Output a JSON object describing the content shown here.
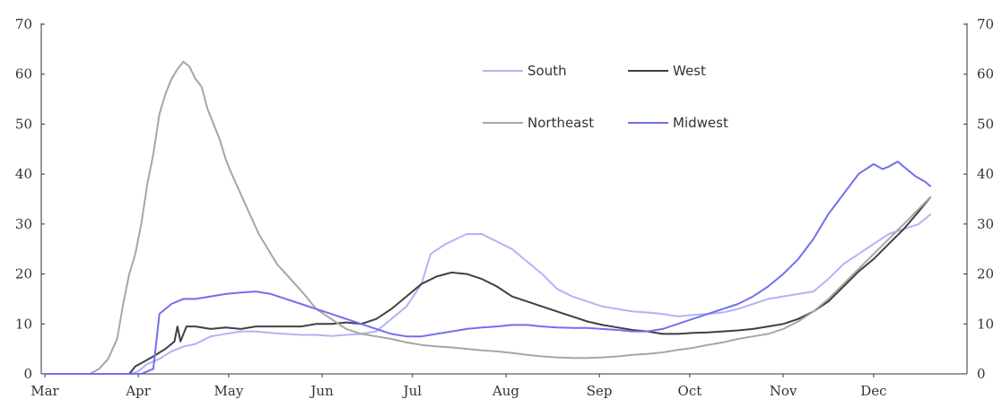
{
  "chart_data": {
    "type": "line",
    "title": "",
    "xlabel": "",
    "ylabel": "",
    "ylim": [
      0,
      70
    ],
    "yticks": [
      0,
      10,
      20,
      30,
      40,
      50,
      60,
      70
    ],
    "month_labels": [
      "Mar",
      "Apr",
      "May",
      "Jun",
      "Jul",
      "Aug",
      "Sep",
      "Oct",
      "Nov",
      "Dec"
    ],
    "x_unit": "days since 1 Mar",
    "legend_position": "top-center",
    "grid": false,
    "series": [
      {
        "name": "South",
        "color": "#b3b3f5",
        "points": [
          [
            0,
            0
          ],
          [
            28,
            0
          ],
          [
            31,
            0.5
          ],
          [
            34,
            2
          ],
          [
            38,
            3
          ],
          [
            42,
            4.5
          ],
          [
            46,
            5.5
          ],
          [
            50,
            6
          ],
          [
            55,
            7.5
          ],
          [
            60,
            8
          ],
          [
            65,
            8.5
          ],
          [
            70,
            8.5
          ],
          [
            75,
            8.2
          ],
          [
            80,
            8
          ],
          [
            85,
            7.8
          ],
          [
            90,
            7.8
          ],
          [
            95,
            7.6
          ],
          [
            100,
            7.8
          ],
          [
            105,
            8
          ],
          [
            110,
            8.5
          ],
          [
            115,
            11
          ],
          [
            120,
            13.5
          ],
          [
            125,
            18
          ],
          [
            128,
            24
          ],
          [
            133,
            26
          ],
          [
            140,
            28
          ],
          [
            145,
            28
          ],
          [
            150,
            26.5
          ],
          [
            155,
            25
          ],
          [
            160,
            22.5
          ],
          [
            165,
            20
          ],
          [
            170,
            17
          ],
          [
            175,
            15.5
          ],
          [
            180,
            14.5
          ],
          [
            185,
            13.5
          ],
          [
            190,
            13
          ],
          [
            195,
            12.5
          ],
          [
            200,
            12.3
          ],
          [
            205,
            12
          ],
          [
            210,
            11.5
          ],
          [
            215,
            11.8
          ],
          [
            220,
            12
          ],
          [
            225,
            12.3
          ],
          [
            230,
            13
          ],
          [
            235,
            14
          ],
          [
            240,
            15
          ],
          [
            245,
            15.5
          ],
          [
            250,
            16
          ],
          [
            255,
            16.5
          ],
          [
            260,
            19
          ],
          [
            265,
            22
          ],
          [
            270,
            24
          ],
          [
            275,
            26
          ],
          [
            280,
            28
          ],
          [
            285,
            29
          ],
          [
            290,
            30
          ],
          [
            294,
            32
          ]
        ]
      },
      {
        "name": "West",
        "color": "#404040",
        "points": [
          [
            0,
            0
          ],
          [
            28,
            0
          ],
          [
            30,
            1.5
          ],
          [
            33,
            2.5
          ],
          [
            36,
            3.5
          ],
          [
            40,
            5
          ],
          [
            43,
            6.5
          ],
          [
            44,
            9.5
          ],
          [
            45,
            6.5
          ],
          [
            47,
            9.5
          ],
          [
            50,
            9.5
          ],
          [
            55,
            9
          ],
          [
            60,
            9.3
          ],
          [
            65,
            9
          ],
          [
            70,
            9.5
          ],
          [
            75,
            9.5
          ],
          [
            80,
            9.5
          ],
          [
            85,
            9.5
          ],
          [
            90,
            10
          ],
          [
            95,
            10
          ],
          [
            100,
            10.3
          ],
          [
            105,
            10
          ],
          [
            110,
            11
          ],
          [
            115,
            13
          ],
          [
            120,
            15.5
          ],
          [
            125,
            18
          ],
          [
            130,
            19.5
          ],
          [
            135,
            20.3
          ],
          [
            140,
            20
          ],
          [
            145,
            19
          ],
          [
            150,
            17.5
          ],
          [
            155,
            15.5
          ],
          [
            160,
            14.5
          ],
          [
            165,
            13.5
          ],
          [
            170,
            12.5
          ],
          [
            175,
            11.5
          ],
          [
            180,
            10.5
          ],
          [
            185,
            9.8
          ],
          [
            190,
            9.3
          ],
          [
            195,
            8.8
          ],
          [
            200,
            8.5
          ],
          [
            205,
            8
          ],
          [
            210,
            8
          ],
          [
            215,
            8.2
          ],
          [
            220,
            8.3
          ],
          [
            225,
            8.5
          ],
          [
            230,
            8.7
          ],
          [
            235,
            9
          ],
          [
            240,
            9.5
          ],
          [
            245,
            10
          ],
          [
            250,
            11
          ],
          [
            255,
            12.5
          ],
          [
            260,
            14.5
          ],
          [
            265,
            17.5
          ],
          [
            270,
            20.5
          ],
          [
            275,
            23
          ],
          [
            280,
            26
          ],
          [
            285,
            29
          ],
          [
            290,
            32.5
          ],
          [
            294,
            35.5
          ]
        ]
      },
      {
        "name": "Northeast",
        "color": "#a6a6a6",
        "points": [
          [
            0,
            0
          ],
          [
            15,
            0
          ],
          [
            18,
            1
          ],
          [
            21,
            3
          ],
          [
            24,
            7
          ],
          [
            26,
            14
          ],
          [
            28,
            20
          ],
          [
            30,
            24
          ],
          [
            32,
            30
          ],
          [
            34,
            38
          ],
          [
            36,
            44
          ],
          [
            38,
            52
          ],
          [
            40,
            56
          ],
          [
            42,
            59
          ],
          [
            44,
            61
          ],
          [
            46,
            62.5
          ],
          [
            48,
            61.5
          ],
          [
            50,
            59
          ],
          [
            52,
            57.5
          ],
          [
            54,
            53
          ],
          [
            56,
            50
          ],
          [
            58,
            47
          ],
          [
            60,
            43
          ],
          [
            62,
            40
          ],
          [
            65,
            36
          ],
          [
            68,
            32
          ],
          [
            71,
            28
          ],
          [
            74,
            25
          ],
          [
            77,
            22
          ],
          [
            80,
            20
          ],
          [
            83,
            18
          ],
          [
            86,
            16
          ],
          [
            90,
            13
          ],
          [
            95,
            11
          ],
          [
            100,
            9
          ],
          [
            105,
            8
          ],
          [
            110,
            7.5
          ],
          [
            115,
            7
          ],
          [
            120,
            6.3
          ],
          [
            125,
            5.8
          ],
          [
            130,
            5.5
          ],
          [
            135,
            5.3
          ],
          [
            140,
            5
          ],
          [
            145,
            4.7
          ],
          [
            150,
            4.5
          ],
          [
            155,
            4.2
          ],
          [
            160,
            3.8
          ],
          [
            165,
            3.5
          ],
          [
            170,
            3.3
          ],
          [
            175,
            3.2
          ],
          [
            180,
            3.2
          ],
          [
            185,
            3.3
          ],
          [
            190,
            3.5
          ],
          [
            195,
            3.8
          ],
          [
            200,
            4
          ],
          [
            205,
            4.3
          ],
          [
            210,
            4.8
          ],
          [
            215,
            5.2
          ],
          [
            220,
            5.8
          ],
          [
            225,
            6.3
          ],
          [
            230,
            7
          ],
          [
            235,
            7.5
          ],
          [
            240,
            8
          ],
          [
            245,
            9
          ],
          [
            250,
            10.5
          ],
          [
            255,
            12.5
          ],
          [
            260,
            15
          ],
          [
            265,
            18
          ],
          [
            270,
            21
          ],
          [
            275,
            24
          ],
          [
            280,
            27
          ],
          [
            285,
            30
          ],
          [
            290,
            33
          ],
          [
            294,
            35.5
          ]
        ]
      },
      {
        "name": "Midwest",
        "color": "#7070ee",
        "points": [
          [
            0,
            0
          ],
          [
            32,
            0
          ],
          [
            34,
            0.5
          ],
          [
            36,
            1
          ],
          [
            37,
            6.5
          ],
          [
            38,
            12
          ],
          [
            40,
            13
          ],
          [
            42,
            14
          ],
          [
            44,
            14.5
          ],
          [
            46,
            15
          ],
          [
            50,
            15
          ],
          [
            55,
            15.5
          ],
          [
            60,
            16
          ],
          [
            65,
            16.3
          ],
          [
            70,
            16.5
          ],
          [
            75,
            16
          ],
          [
            80,
            15
          ],
          [
            85,
            14
          ],
          [
            90,
            13
          ],
          [
            95,
            12
          ],
          [
            100,
            11
          ],
          [
            105,
            10
          ],
          [
            110,
            9
          ],
          [
            115,
            8
          ],
          [
            120,
            7.5
          ],
          [
            125,
            7.5
          ],
          [
            130,
            8
          ],
          [
            135,
            8.5
          ],
          [
            140,
            9
          ],
          [
            145,
            9.3
          ],
          [
            150,
            9.5
          ],
          [
            155,
            9.8
          ],
          [
            160,
            9.8
          ],
          [
            165,
            9.5
          ],
          [
            170,
            9.3
          ],
          [
            175,
            9.2
          ],
          [
            180,
            9.2
          ],
          [
            185,
            9
          ],
          [
            190,
            8.8
          ],
          [
            195,
            8.5
          ],
          [
            200,
            8.5
          ],
          [
            205,
            9
          ],
          [
            210,
            10
          ],
          [
            215,
            11
          ],
          [
            220,
            12
          ],
          [
            225,
            13
          ],
          [
            230,
            14
          ],
          [
            235,
            15.5
          ],
          [
            240,
            17.5
          ],
          [
            245,
            20
          ],
          [
            250,
            23
          ],
          [
            255,
            27
          ],
          [
            260,
            32
          ],
          [
            265,
            36
          ],
          [
            270,
            40
          ],
          [
            275,
            42
          ],
          [
            278,
            41
          ],
          [
            280,
            41.5
          ],
          [
            283,
            42.5
          ],
          [
            286,
            41
          ],
          [
            289,
            39.5
          ],
          [
            292,
            38.5
          ],
          [
            294,
            37.5
          ]
        ]
      }
    ]
  }
}
